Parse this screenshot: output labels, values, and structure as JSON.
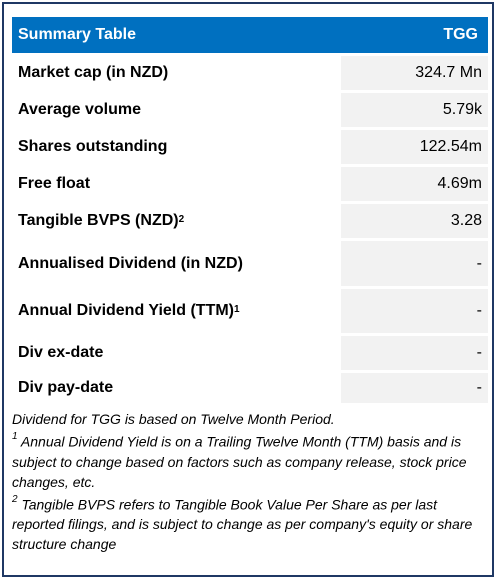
{
  "header": {
    "title": "Summary Table",
    "ticker": "TGG"
  },
  "rows": [
    {
      "label": "Market cap (in NZD)",
      "sup": "",
      "value": "324.7 Mn"
    },
    {
      "label": "Average volume",
      "sup": "",
      "value": "5.79k"
    },
    {
      "label": "Shares outstanding",
      "sup": "",
      "value": "122.54m"
    },
    {
      "label": "Free float",
      "sup": "",
      "value": "4.69m"
    },
    {
      "label": "Tangible BVPS (NZD)",
      "sup": "2",
      "value": "3.28"
    },
    {
      "label": "Annualised Dividend (in NZD)",
      "sup": "",
      "value": "-"
    },
    {
      "label": "Annual Dividend Yield (TTM)",
      "sup": "1",
      "value": "-"
    },
    {
      "label": "Div ex-date",
      "sup": "",
      "value": "-"
    },
    {
      "label": "Div pay-date",
      "sup": "",
      "value": "-"
    }
  ],
  "notes": {
    "line0": "Dividend for TGG is based on Twelve Month Period.",
    "note1_marker": "1",
    "note1_text": "  Annual Dividend Yield is on a Trailing Twelve Month (TTM) basis and is subject to change based on factors such as company release, stock price changes, etc.",
    "note2_marker": "2",
    "note2_text": " Tangible BVPS refers to Tangible Book Value Per Share as per last reported filings, and is subject to change as per company's equity or share structure change"
  }
}
